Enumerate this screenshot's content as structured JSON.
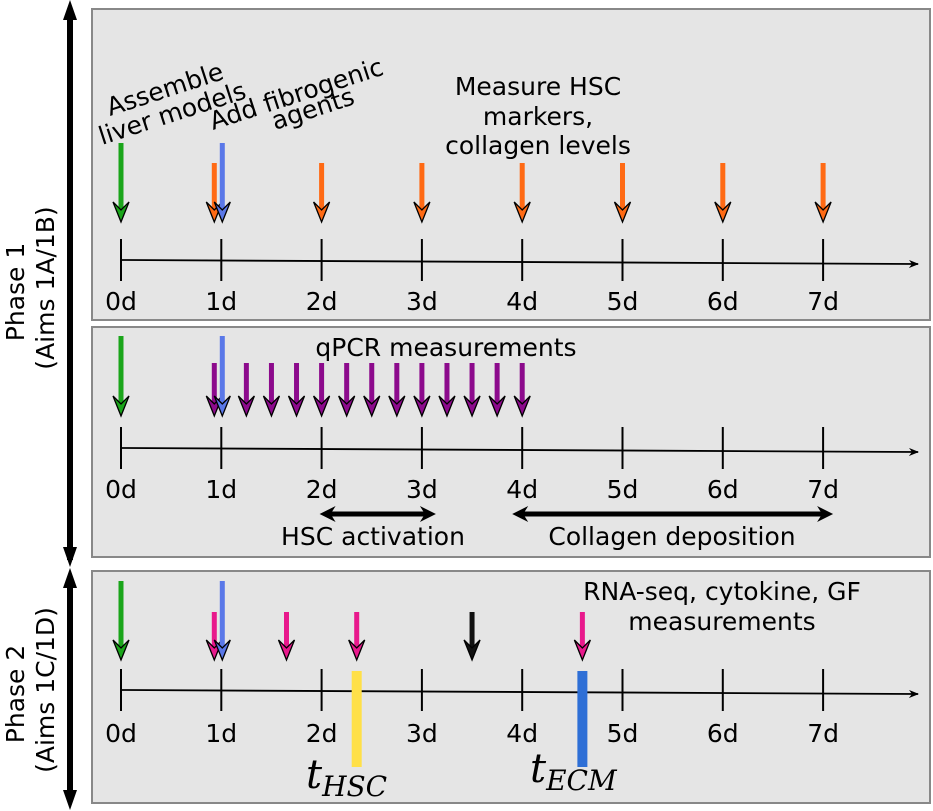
{
  "colors": {
    "panel_bg": "#e5e5e5",
    "panel_border": "#888888",
    "green": "#1aa51a",
    "blue": "#5a78e8",
    "orange": "#ff6a14",
    "purple": "#8c0a8c",
    "pink": "#e8198c",
    "yellow": "#ffe048",
    "ecm_blue": "#2e6fd6",
    "black": "#000000"
  },
  "phases": [
    {
      "label_line1": "Phase 1",
      "label_line2": "(Aims 1A/1B)"
    },
    {
      "label_line1": "Phase 2",
      "label_line2": "(Aims 1C/1D)"
    }
  ],
  "day_labels": [
    "0d",
    "1d",
    "2d",
    "3d",
    "4d",
    "5d",
    "6d",
    "7d"
  ],
  "panel1": {
    "label_assemble_1": "Assemble",
    "label_assemble_2": "liver models",
    "label_fibrogenic_1": "Add fibrogenic",
    "label_fibrogenic_2": "agents",
    "label_measure_1": "Measure HSC",
    "label_measure_2": "markers,",
    "label_measure_3": "collagen levels",
    "orange_days": [
      1,
      2,
      3,
      4,
      5,
      6,
      7
    ]
  },
  "panel2": {
    "label_qpcr": "qPCR measurements",
    "purple_days": [
      1,
      1.25,
      1.5,
      1.75,
      2,
      2.25,
      2.5,
      2.75,
      3,
      3.25,
      3.5,
      3.75,
      4
    ],
    "label_hsc_activation": "HSC activation",
    "hsc_activation_range": [
      2,
      3
    ],
    "label_collagen": "Collagen deposition",
    "collagen_range": [
      4,
      7
    ]
  },
  "panel3": {
    "label_rnaseq_1": "RNA-seq, cytokine, GF",
    "label_rnaseq_2": "measurements",
    "pink_days": [
      1,
      1.65,
      2.35,
      4.6
    ],
    "black_days": [
      3.5
    ],
    "t_hsc_day": 2.35,
    "t_ecm_day": 4.6,
    "t_hsc_base": "t",
    "t_hsc_sub": "HSC",
    "t_ecm_base": "t",
    "t_ecm_sub": "ECM"
  }
}
